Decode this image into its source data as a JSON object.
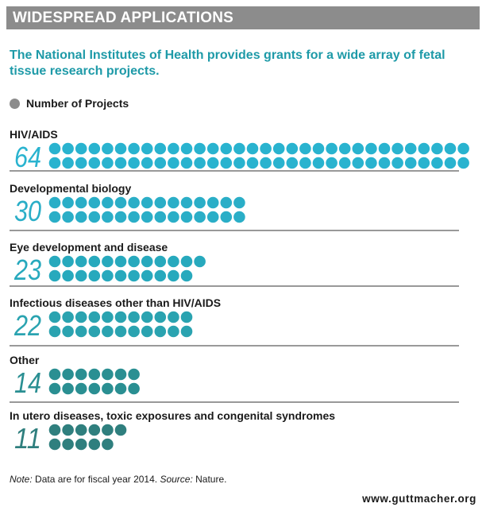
{
  "header": {
    "title": "WIDESPREAD APPLICATIONS"
  },
  "subtitle": "The National Institutes of Health provides grants for a wide array of fetal tissue research projects.",
  "legend": {
    "label": "Number of Projects",
    "color": "#8c8c8c"
  },
  "chart_data": {
    "type": "bar",
    "title": "WIDESPREAD APPLICATIONS",
    "subtitle": "The National Institutes of Health provides grants for a wide array of fetal tissue research projects.",
    "categories": [
      "HIV/AIDS",
      "Developmental biology",
      "Eye development and disease",
      "Infectious diseases other than HIV/AIDS",
      "Other",
      "In utero diseases, toxic exposures and congenital syndromes"
    ],
    "series": [
      {
        "name": "Number of Projects",
        "values": [
          64,
          30,
          23,
          22,
          14,
          11
        ]
      }
    ],
    "value_labels": [
      "64",
      "30",
      "23",
      "22",
      "14",
      "11"
    ],
    "colors": [
      "#29b3cf",
      "#2aaec7",
      "#27a9bd",
      "#2aa3b0",
      "#2a8f92",
      "#2f7f7e"
    ],
    "grid": false
  },
  "footer": {
    "note_label": "Note:",
    "note_text": " Data are for fiscal year 2014. ",
    "source_label": "Source:",
    "source_text": " Nature.",
    "website": "www.guttmacher.org"
  }
}
